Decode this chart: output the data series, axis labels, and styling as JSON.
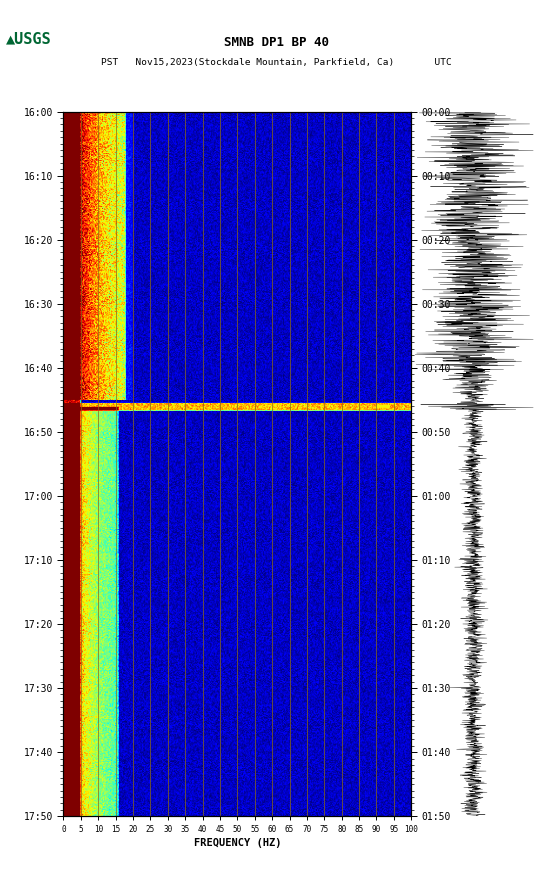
{
  "title_line1": "SMNB DP1 BP 40",
  "title_line2": "PST   Nov15,2023(Stockdale Mountain, Parkfield, Ca)       UTC",
  "xlabel": "FREQUENCY (HZ)",
  "freq_ticks": [
    0,
    5,
    10,
    15,
    20,
    25,
    30,
    35,
    40,
    45,
    50,
    55,
    60,
    65,
    70,
    75,
    80,
    85,
    90,
    95,
    100
  ],
  "time_left_labels": [
    "16:00",
    "16:10",
    "16:20",
    "16:30",
    "16:40",
    "16:50",
    "17:00",
    "17:10",
    "17:20",
    "17:30",
    "17:40",
    "17:50"
  ],
  "time_right_labels": [
    "00:00",
    "00:10",
    "00:20",
    "00:30",
    "00:40",
    "00:50",
    "01:00",
    "01:10",
    "01:20",
    "01:30",
    "01:40",
    "01:50"
  ],
  "freq_vlines": [
    5,
    10,
    15,
    20,
    25,
    30,
    35,
    40,
    45,
    50,
    55,
    60,
    65,
    70,
    75,
    80,
    85,
    90,
    95,
    100
  ],
  "bg_color": "#ffffff",
  "vline_color": "#8B6914",
  "usgs_green": "#006633",
  "time_steps": 720,
  "freq_steps": 400,
  "seed": 1234
}
